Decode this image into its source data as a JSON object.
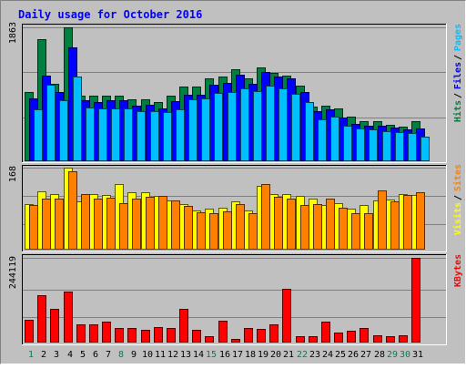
{
  "chart_data": [
    {
      "type": "bar",
      "title": "Daily usage for October 2016",
      "panel": "pages-files-hits",
      "ymax_label": "1863",
      "ylim": [
        0,
        1863
      ],
      "categories": [
        "1",
        "2",
        "3",
        "4",
        "5",
        "6",
        "7",
        "8",
        "9",
        "10",
        "11",
        "12",
        "13",
        "14",
        "15",
        "16",
        "17",
        "18",
        "19",
        "20",
        "21",
        "22",
        "23",
        "24",
        "25",
        "26",
        "27",
        "28",
        "29",
        "30",
        "31"
      ],
      "weekend_days": [
        "1",
        "8",
        "15",
        "22",
        "29",
        "30"
      ],
      "legend_order": [
        "Pages",
        "Files",
        "Hits"
      ],
      "series": [
        {
          "name": "Hits",
          "color": "#008040",
          "values": [
            960,
            1703,
            1076,
            1863,
            913,
            907,
            909,
            909,
            866,
            866,
            823,
            913,
            1037,
            1037,
            1154,
            1183,
            1277,
            1154,
            1303,
            1228,
            1186,
            1046,
            758,
            773,
            740,
            621,
            561,
            560,
            509,
            484,
            553
          ]
        },
        {
          "name": "Files",
          "color": "#0000ff",
          "values": [
            870,
            1190,
            960,
            1590,
            855,
            820,
            850,
            855,
            770,
            780,
            740,
            840,
            930,
            930,
            1070,
            1090,
            1200,
            1080,
            1240,
            1180,
            1155,
            960,
            700,
            720,
            610,
            520,
            500,
            490,
            470,
            440,
            460
          ]
        },
        {
          "name": "Pages",
          "color": "#00c0ff",
          "values": [
            720,
            1070,
            850,
            1180,
            745,
            740,
            740,
            740,
            700,
            700,
            680,
            720,
            860,
            880,
            950,
            960,
            1010,
            970,
            1050,
            1010,
            940,
            830,
            580,
            620,
            500,
            450,
            440,
            420,
            400,
            390,
            340
          ]
        }
      ]
    },
    {
      "type": "bar",
      "panel": "sites-visits",
      "ymax_label": "168",
      "ylim": [
        0,
        168
      ],
      "categories": [
        "1",
        "2",
        "3",
        "4",
        "5",
        "6",
        "7",
        "8",
        "9",
        "10",
        "11",
        "12",
        "13",
        "14",
        "15",
        "16",
        "17",
        "18",
        "19",
        "20",
        "21",
        "22",
        "23",
        "24",
        "25",
        "26",
        "27",
        "28",
        "29",
        "30",
        "31"
      ],
      "legend_order": [
        "Sites",
        "Visits"
      ],
      "series": [
        {
          "name": "Visits",
          "color": "#ffff00",
          "values": [
            93,
            119,
            114,
            168,
            99,
            113,
            112,
            134,
            117,
            117,
            111,
            101,
            93,
            81,
            84,
            86,
            99,
            80,
            130,
            114,
            113,
            110,
            104,
            92,
            96,
            84,
            92,
            100,
            103,
            114,
            112
          ]
        },
        {
          "name": "Sites",
          "color": "#ff8000",
          "values": [
            92,
            105,
            105,
            160,
            113,
            104,
            107,
            95,
            105,
            108,
            110,
            101,
            89,
            77,
            75,
            78,
            94,
            75,
            134,
            108,
            104,
            92,
            94,
            105,
            85,
            74,
            74,
            121,
            98,
            112,
            118
          ]
        }
      ]
    },
    {
      "type": "bar",
      "panel": "kbytes",
      "ymax_label": "244119",
      "ylim": [
        0,
        244119
      ],
      "categories": [
        "1",
        "2",
        "3",
        "4",
        "5",
        "6",
        "7",
        "8",
        "9",
        "10",
        "11",
        "12",
        "13",
        "14",
        "15",
        "16",
        "17",
        "18",
        "19",
        "20",
        "21",
        "22",
        "23",
        "24",
        "25",
        "26",
        "27",
        "28",
        "29",
        "30",
        "31"
      ],
      "legend_order": [
        "KBytes"
      ],
      "series": [
        {
          "name": "KBytes",
          "color": "#ff0000",
          "values": [
            65800,
            136000,
            98000,
            147000,
            52800,
            51200,
            59600,
            42400,
            42400,
            37800,
            43500,
            42400,
            97800,
            36100,
            18800,
            62100,
            10400,
            42400,
            39100,
            52800,
            156000,
            18800,
            17500,
            59600,
            29000,
            34600,
            40800,
            20000,
            18800,
            20000,
            244119
          ]
        }
      ]
    }
  ]
}
